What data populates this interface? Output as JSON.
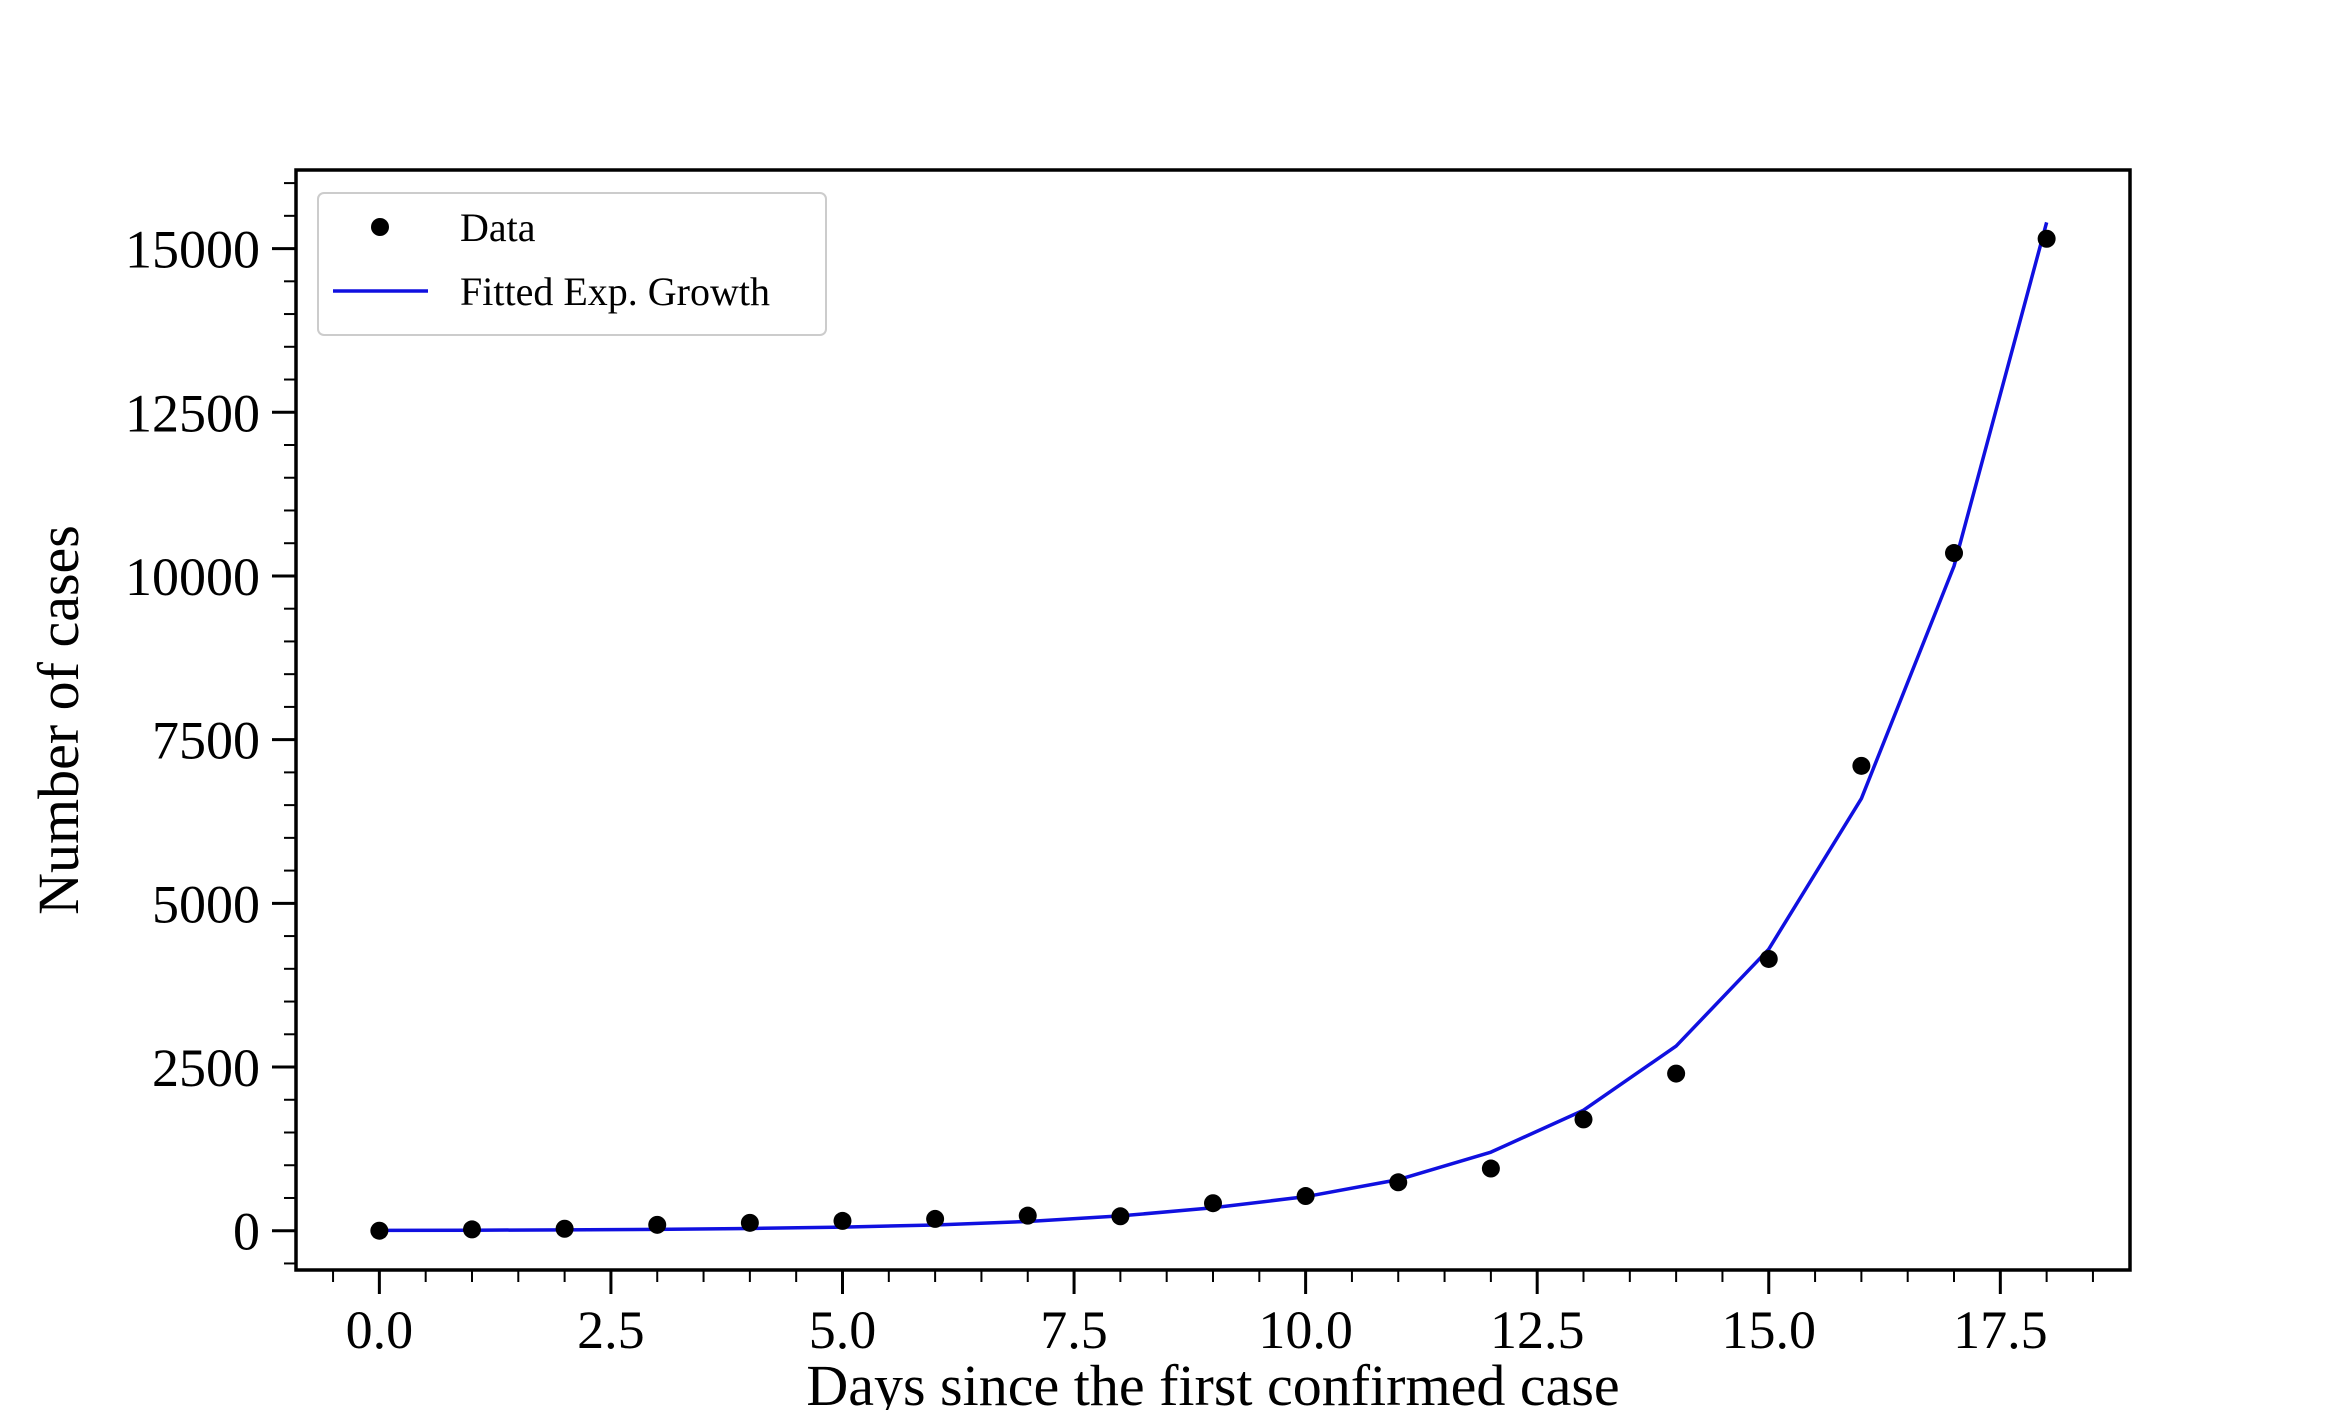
{
  "chart_data": {
    "type": "scatter",
    "xlabel": "Days since the first confirmed case",
    "ylabel": "Number of cases",
    "xlim": [
      -0.9,
      18.9
    ],
    "ylim": [
      -600,
      16200
    ],
    "x_ticks": [
      0.0,
      2.5,
      5.0,
      7.5,
      10.0,
      12.5,
      15.0,
      17.5
    ],
    "x_tick_labels": [
      "0.0",
      "2.5",
      "5.0",
      "7.5",
      "10.0",
      "12.5",
      "15.0",
      "17.5"
    ],
    "x_minor_step": 0.5,
    "y_ticks": [
      0,
      2500,
      5000,
      7500,
      10000,
      12500,
      15000
    ],
    "y_tick_labels": [
      "0",
      "2500",
      "5000",
      "7500",
      "10000",
      "12500",
      "15000"
    ],
    "y_minor_step": 500,
    "grid": false,
    "legend_position": "top-left",
    "series": [
      {
        "name": "Data",
        "kind": "scatter",
        "color": "#000000",
        "x": [
          0,
          1,
          2,
          3,
          4,
          5,
          6,
          7,
          8,
          9,
          10,
          11,
          12,
          13,
          14,
          15,
          16,
          17,
          18
        ],
        "y": [
          0,
          20,
          30,
          90,
          120,
          150,
          180,
          230,
          220,
          420,
          530,
          740,
          950,
          1700,
          2400,
          4150,
          7100,
          10350,
          15150
        ]
      },
      {
        "name": "Fitted Exp. Growth",
        "kind": "line",
        "color": "#1010e0",
        "x": [
          0,
          1,
          2,
          3,
          4,
          5,
          6,
          7,
          8,
          9,
          10,
          11,
          12,
          13,
          14,
          15,
          16,
          17,
          18
        ],
        "y": [
          5,
          8,
          13,
          21,
          34,
          55,
          88,
          141,
          226,
          350,
          520,
          780,
          1200,
          1840,
          2820,
          4300,
          6600,
          10150,
          15400
        ]
      }
    ]
  }
}
